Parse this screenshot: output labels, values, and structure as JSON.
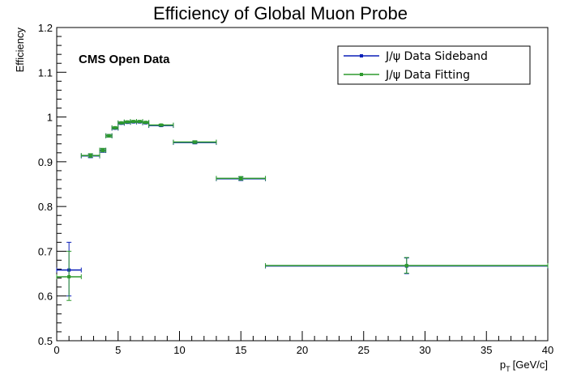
{
  "chart_data": {
    "type": "scatter",
    "title": "Efficiency of Global Muon Probe",
    "xlabel_main": "p",
    "xlabel_sub": "T",
    "xlabel_unit": "[GeV/c]",
    "ylabel": "Efficiency",
    "annotation": "CMS Open Data",
    "xlim": [
      0,
      40
    ],
    "ylim": [
      0.5,
      1.2
    ],
    "x_ticks": [
      "0",
      "5",
      "10",
      "15",
      "20",
      "25",
      "30",
      "35",
      "40"
    ],
    "y_ticks": [
      "0.5",
      "0.6",
      "0.7",
      "0.8",
      "0.9",
      "1",
      "1.1",
      "1.2"
    ],
    "legend_position": "top-right",
    "grid": false,
    "series": [
      {
        "name": "J/ψ Data Sideband",
        "color": "#0a1fb8",
        "points": [
          {
            "x": 1.0,
            "xlo": 0.0,
            "xhi": 2.0,
            "y": 0.658,
            "ylo": 0.6,
            "yhi": 0.72
          },
          {
            "x": 2.75,
            "xlo": 2.0,
            "xhi": 3.5,
            "y": 0.913,
            "ylo": 0.909,
            "yhi": 0.917
          },
          {
            "x": 3.75,
            "xlo": 3.5,
            "xhi": 4.0,
            "y": 0.925,
            "ylo": 0.921,
            "yhi": 0.929
          },
          {
            "x": 4.25,
            "xlo": 4.0,
            "xhi": 4.5,
            "y": 0.958,
            "ylo": 0.955,
            "yhi": 0.961
          },
          {
            "x": 4.75,
            "xlo": 4.5,
            "xhi": 5.0,
            "y": 0.975,
            "ylo": 0.973,
            "yhi": 0.977
          },
          {
            "x": 5.25,
            "xlo": 5.0,
            "xhi": 5.5,
            "y": 0.986,
            "ylo": 0.984,
            "yhi": 0.988
          },
          {
            "x": 5.75,
            "xlo": 5.5,
            "xhi": 6.0,
            "y": 0.988,
            "ylo": 0.986,
            "yhi": 0.99
          },
          {
            "x": 6.25,
            "xlo": 6.0,
            "xhi": 6.5,
            "y": 0.989,
            "ylo": 0.987,
            "yhi": 0.991
          },
          {
            "x": 6.75,
            "xlo": 6.5,
            "xhi": 7.0,
            "y": 0.989,
            "ylo": 0.987,
            "yhi": 0.991
          },
          {
            "x": 7.25,
            "xlo": 7.0,
            "xhi": 7.5,
            "y": 0.987,
            "ylo": 0.985,
            "yhi": 0.989
          },
          {
            "x": 8.5,
            "xlo": 7.5,
            "xhi": 9.5,
            "y": 0.981,
            "ylo": 0.979,
            "yhi": 0.983
          },
          {
            "x": 11.25,
            "xlo": 9.5,
            "xhi": 13.0,
            "y": 0.943,
            "ylo": 0.94,
            "yhi": 0.946
          },
          {
            "x": 15.0,
            "xlo": 13.0,
            "xhi": 17.0,
            "y": 0.862,
            "ylo": 0.858,
            "yhi": 0.866
          },
          {
            "x": 28.5,
            "xlo": 17.0,
            "xhi": 40.0,
            "y": 0.667,
            "ylo": 0.65,
            "yhi": 0.685
          }
        ]
      },
      {
        "name": "J/ψ Data Fitting",
        "color": "#2e9a2e",
        "points": [
          {
            "x": 1.0,
            "xlo": 0.0,
            "xhi": 2.0,
            "y": 0.643,
            "ylo": 0.59,
            "yhi": 0.7
          },
          {
            "x": 2.75,
            "xlo": 2.0,
            "xhi": 3.5,
            "y": 0.914,
            "ylo": 0.91,
            "yhi": 0.918
          },
          {
            "x": 3.75,
            "xlo": 3.5,
            "xhi": 4.0,
            "y": 0.926,
            "ylo": 0.922,
            "yhi": 0.93
          },
          {
            "x": 4.25,
            "xlo": 4.0,
            "xhi": 4.5,
            "y": 0.958,
            "ylo": 0.955,
            "yhi": 0.961
          },
          {
            "x": 4.75,
            "xlo": 4.5,
            "xhi": 5.0,
            "y": 0.976,
            "ylo": 0.974,
            "yhi": 0.978
          },
          {
            "x": 5.25,
            "xlo": 5.0,
            "xhi": 5.5,
            "y": 0.987,
            "ylo": 0.985,
            "yhi": 0.989
          },
          {
            "x": 5.75,
            "xlo": 5.5,
            "xhi": 6.0,
            "y": 0.989,
            "ylo": 0.987,
            "yhi": 0.991
          },
          {
            "x": 6.25,
            "xlo": 6.0,
            "xhi": 6.5,
            "y": 0.99,
            "ylo": 0.988,
            "yhi": 0.992
          },
          {
            "x": 6.75,
            "xlo": 6.5,
            "xhi": 7.0,
            "y": 0.99,
            "ylo": 0.988,
            "yhi": 0.992
          },
          {
            "x": 7.25,
            "xlo": 7.0,
            "xhi": 7.5,
            "y": 0.988,
            "ylo": 0.986,
            "yhi": 0.99
          },
          {
            "x": 8.5,
            "xlo": 7.5,
            "xhi": 9.5,
            "y": 0.982,
            "ylo": 0.98,
            "yhi": 0.984
          },
          {
            "x": 11.25,
            "xlo": 9.5,
            "xhi": 13.0,
            "y": 0.944,
            "ylo": 0.941,
            "yhi": 0.947
          },
          {
            "x": 15.0,
            "xlo": 13.0,
            "xhi": 17.0,
            "y": 0.863,
            "ylo": 0.859,
            "yhi": 0.867
          },
          {
            "x": 28.5,
            "xlo": 17.0,
            "xhi": 40.0,
            "y": 0.668,
            "ylo": 0.651,
            "yhi": 0.686
          }
        ]
      }
    ]
  }
}
